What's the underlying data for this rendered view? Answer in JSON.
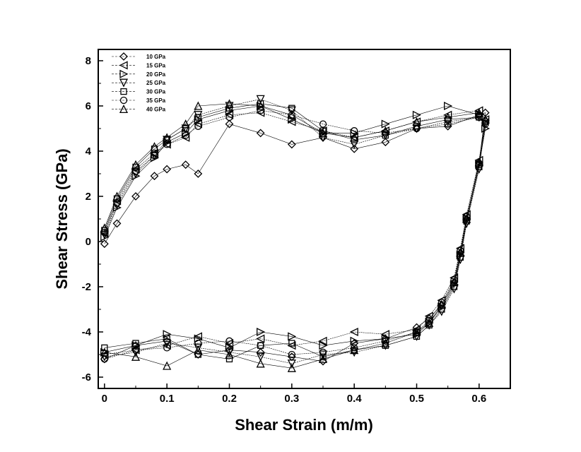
{
  "chart_data": {
    "type": "scatter",
    "xlabel": "Shear Strain (m/m)",
    "ylabel": "Shear Stress (GPa)",
    "xlim": [
      -0.01,
      0.65
    ],
    "ylim": [
      -6.5,
      8.5
    ],
    "x_ticks": [
      0,
      0.1,
      0.2,
      0.3,
      0.4,
      0.5,
      0.6
    ],
    "x_tick_labels": [
      "0",
      "0.1",
      "0.2",
      "0.3",
      "0.4",
      "0.5",
      "0.6"
    ],
    "y_ticks": [
      -6,
      -4,
      -2,
      0,
      2,
      4,
      6,
      8
    ],
    "y_tick_labels": [
      "-6",
      "-4",
      "-2",
      "0",
      "2",
      "4",
      "6",
      "8"
    ],
    "grid": false,
    "legend_position": "top-left",
    "series": [
      {
        "name": "10 GPa",
        "marker": "diamond",
        "x": [
          0.0,
          0.02,
          0.05,
          0.08,
          0.1,
          0.13,
          0.15,
          0.2,
          0.25,
          0.3,
          0.35,
          0.4,
          0.45,
          0.5,
          0.55,
          0.6,
          0.61,
          0.6,
          0.58,
          0.57,
          0.56,
          0.54,
          0.52,
          0.5,
          0.45,
          0.4,
          0.35,
          0.3,
          0.25,
          0.2,
          0.15,
          0.1,
          0.05,
          0.0
        ],
        "y": [
          -0.1,
          0.8,
          2.0,
          2.9,
          3.2,
          3.4,
          3.0,
          5.2,
          4.8,
          4.3,
          4.6,
          4.1,
          4.4,
          5.0,
          5.1,
          5.6,
          5.7,
          3.5,
          1.0,
          -0.5,
          -1.8,
          -2.8,
          -3.4,
          -3.8,
          -4.3,
          -4.5,
          -5.3,
          -5.1,
          -4.9,
          -4.8,
          -5.0,
          -4.4,
          -4.6,
          -5.2
        ]
      },
      {
        "name": "15 GPa",
        "marker": "triangle-left",
        "x": [
          0.0,
          0.02,
          0.05,
          0.08,
          0.1,
          0.13,
          0.15,
          0.2,
          0.25,
          0.3,
          0.35,
          0.4,
          0.45,
          0.5,
          0.55,
          0.6,
          0.61,
          0.6,
          0.58,
          0.57,
          0.56,
          0.54,
          0.52,
          0.5,
          0.45,
          0.4,
          0.35,
          0.3,
          0.25,
          0.2,
          0.15,
          0.1,
          0.05,
          0.0
        ],
        "y": [
          0.4,
          1.8,
          3.2,
          3.9,
          4.3,
          4.6,
          5.2,
          5.6,
          5.7,
          5.3,
          4.9,
          4.6,
          4.9,
          5.3,
          5.6,
          5.8,
          5.4,
          3.6,
          1.2,
          -0.3,
          -1.6,
          -2.6,
          -3.3,
          -3.9,
          -4.1,
          -4.0,
          -4.4,
          -4.6,
          -4.3,
          -4.5,
          -4.2,
          -4.6,
          -4.8,
          -5.0
        ]
      },
      {
        "name": "20 GPa",
        "marker": "triangle-right",
        "x": [
          0.0,
          0.02,
          0.05,
          0.08,
          0.1,
          0.13,
          0.15,
          0.2,
          0.25,
          0.3,
          0.35,
          0.4,
          0.45,
          0.5,
          0.55,
          0.6,
          0.61,
          0.6,
          0.58,
          0.57,
          0.56,
          0.54,
          0.52,
          0.5,
          0.45,
          0.4,
          0.35,
          0.3,
          0.25,
          0.2,
          0.15,
          0.1,
          0.05,
          0.0
        ],
        "y": [
          0.2,
          1.5,
          2.9,
          3.7,
          4.4,
          4.8,
          5.4,
          5.8,
          6.0,
          5.4,
          4.8,
          4.8,
          5.2,
          5.6,
          6.0,
          5.6,
          5.0,
          3.4,
          1.0,
          -0.6,
          -1.9,
          -2.9,
          -3.6,
          -4.1,
          -4.3,
          -4.4,
          -4.6,
          -4.2,
          -4.0,
          -4.7,
          -4.3,
          -4.1,
          -4.6,
          -4.9
        ]
      },
      {
        "name": "25 GPa",
        "marker": "triangle-down",
        "x": [
          0.0,
          0.02,
          0.05,
          0.08,
          0.1,
          0.13,
          0.15,
          0.2,
          0.25,
          0.3,
          0.35,
          0.4,
          0.45,
          0.5,
          0.55,
          0.6,
          0.61,
          0.6,
          0.58,
          0.57,
          0.56,
          0.54,
          0.52,
          0.5,
          0.45,
          0.4,
          0.35,
          0.3,
          0.25,
          0.2,
          0.15,
          0.1,
          0.05,
          0.0
        ],
        "y": [
          0.3,
          1.6,
          3.0,
          3.8,
          4.5,
          5.0,
          5.6,
          6.0,
          6.3,
          5.8,
          4.6,
          4.3,
          4.7,
          5.0,
          5.3,
          5.5,
          5.2,
          3.2,
          0.8,
          -0.8,
          -2.1,
          -3.1,
          -3.7,
          -4.2,
          -4.6,
          -4.9,
          -5.0,
          -5.4,
          -5.1,
          -4.9,
          -4.7,
          -4.5,
          -4.9,
          -5.1
        ]
      },
      {
        "name": "30 GPa",
        "marker": "square",
        "x": [
          0.0,
          0.02,
          0.05,
          0.08,
          0.1,
          0.13,
          0.15,
          0.2,
          0.25,
          0.3,
          0.35,
          0.4,
          0.45,
          0.5,
          0.55,
          0.6,
          0.61,
          0.6,
          0.58,
          0.57,
          0.56,
          0.54,
          0.52,
          0.5,
          0.45,
          0.4,
          0.35,
          0.3,
          0.25,
          0.2,
          0.15,
          0.1,
          0.05,
          0.0
        ],
        "y": [
          0.5,
          1.9,
          3.3,
          4.1,
          4.5,
          5.0,
          5.5,
          5.9,
          6.1,
          5.9,
          4.9,
          4.5,
          4.7,
          5.1,
          5.4,
          5.5,
          5.3,
          3.3,
          0.9,
          -0.7,
          -2.0,
          -3.0,
          -3.7,
          -4.2,
          -4.6,
          -4.8,
          -5.1,
          -4.5,
          -4.6,
          -5.2,
          -5.0,
          -4.3,
          -4.5,
          -4.7
        ]
      },
      {
        "name": "35 GPa",
        "marker": "circle",
        "x": [
          0.0,
          0.02,
          0.05,
          0.08,
          0.1,
          0.13,
          0.15,
          0.2,
          0.25,
          0.3,
          0.35,
          0.4,
          0.45,
          0.5,
          0.55,
          0.6,
          0.61,
          0.6,
          0.58,
          0.57,
          0.56,
          0.54,
          0.52,
          0.5,
          0.45,
          0.4,
          0.35,
          0.3,
          0.25,
          0.2,
          0.15,
          0.1,
          0.05,
          0.0
        ],
        "y": [
          0.4,
          1.7,
          3.1,
          3.8,
          4.3,
          4.7,
          5.1,
          5.5,
          5.8,
          5.6,
          5.2,
          4.9,
          4.8,
          5.0,
          5.2,
          5.5,
          5.2,
          3.4,
          1.1,
          -0.4,
          -1.7,
          -2.7,
          -3.5,
          -4.0,
          -4.4,
          -4.7,
          -4.9,
          -5.0,
          -4.6,
          -4.4,
          -4.5,
          -4.7,
          -4.8,
          -5.2
        ]
      },
      {
        "name": "40 GPa",
        "marker": "triangle-up",
        "x": [
          0.0,
          0.02,
          0.05,
          0.08,
          0.1,
          0.13,
          0.15,
          0.2,
          0.25,
          0.3,
          0.35,
          0.4,
          0.45,
          0.5,
          0.55,
          0.6,
          0.61,
          0.6,
          0.58,
          0.57,
          0.56,
          0.54,
          0.52,
          0.5,
          0.45,
          0.4,
          0.35,
          0.3,
          0.25,
          0.2,
          0.15,
          0.1,
          0.05,
          0.0
        ],
        "y": [
          0.6,
          2.0,
          3.4,
          4.2,
          4.6,
          5.2,
          6.0,
          6.1,
          6.0,
          5.6,
          4.8,
          4.6,
          4.9,
          5.3,
          5.5,
          5.7,
          5.4,
          3.5,
          1.0,
          -0.5,
          -1.8,
          -2.8,
          -3.6,
          -4.0,
          -4.5,
          -4.8,
          -5.2,
          -5.6,
          -5.4,
          -5.0,
          -4.8,
          -5.5,
          -5.1,
          -4.9
        ]
      }
    ]
  }
}
